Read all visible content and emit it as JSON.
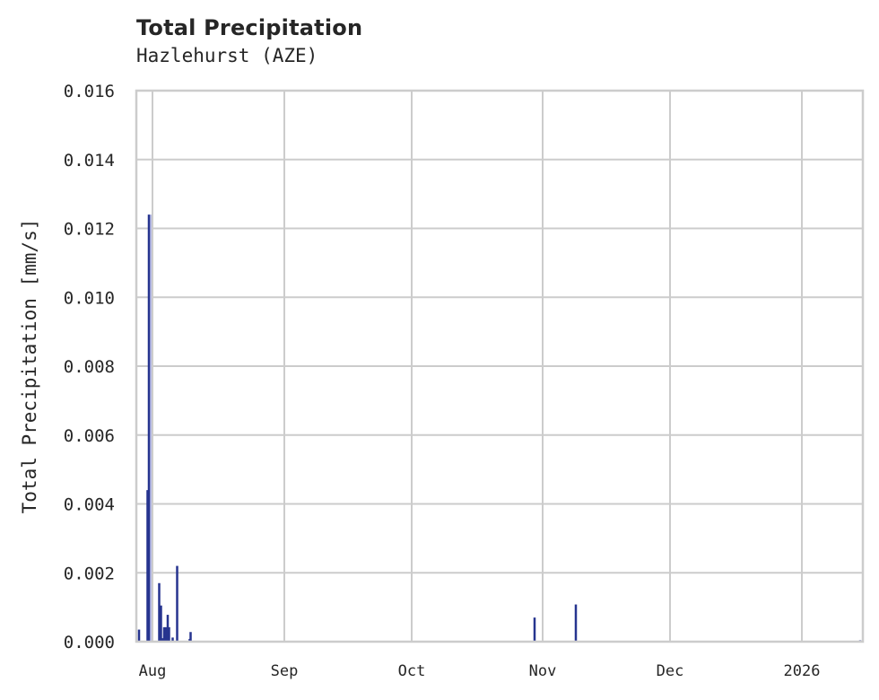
{
  "chart_data": {
    "type": "bar",
    "title": "Total Precipitation",
    "subtitle": "Hazlehurst (AZE)",
    "xlabel": "",
    "ylabel": "Total Precipitation [mm/s]",
    "ylim": [
      0,
      0.016
    ],
    "yticks": [
      "0.000",
      "0.002",
      "0.004",
      "0.006",
      "0.008",
      "0.010",
      "0.012",
      "0.014",
      "0.016"
    ],
    "ytick_values": [
      0,
      0.002,
      0.004,
      0.006,
      0.008,
      0.01,
      0.012,
      0.014,
      0.016
    ],
    "xticks": [
      {
        "label": "Aug",
        "px": 170
      },
      {
        "label": "Sep",
        "px": 317
      },
      {
        "label": "Oct",
        "px": 459
      },
      {
        "label": "Nov",
        "px": 605
      },
      {
        "label": "Dec",
        "px": 747
      },
      {
        "label": "2026",
        "px": 894
      }
    ],
    "grid": true,
    "bar_color": "#26348f",
    "halo_color": "#b9bde6",
    "series": [
      {
        "name": "Total Precipitation",
        "points": [
          {
            "px": 155,
            "value": 0.00035
          },
          {
            "px": 164.5,
            "value": 0.0044
          },
          {
            "px": 166,
            "value": 0.0124
          },
          {
            "px": 177.5,
            "value": 0.0017
          },
          {
            "px": 179.5,
            "value": 0.00105
          },
          {
            "px": 181.5,
            "value": 0.0001
          },
          {
            "px": 183,
            "value": 0.00042
          },
          {
            "px": 185,
            "value": 0.00042
          },
          {
            "px": 187,
            "value": 0.00078
          },
          {
            "px": 188.5,
            "value": 0.00042
          },
          {
            "px": 192.5,
            "value": 0.00012
          },
          {
            "px": 197.5,
            "value": 0.0022
          },
          {
            "px": 211.5,
            "value": 8e-05
          },
          {
            "px": 212.5,
            "value": 0.00028
          },
          {
            "px": 596,
            "value": 0.0007
          },
          {
            "px": 642,
            "value": 0.00108
          },
          {
            "px": 959,
            "value": 4e-05
          }
        ]
      }
    ]
  }
}
